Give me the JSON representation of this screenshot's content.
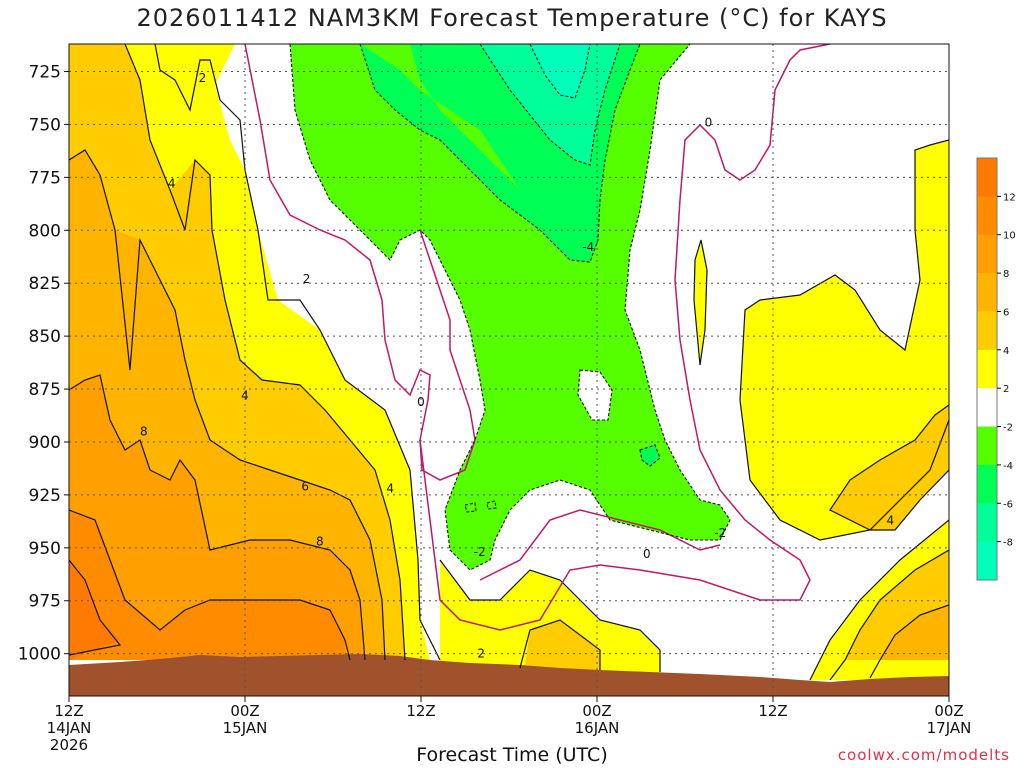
{
  "chart_data": {
    "type": "heatmap",
    "title": "2026011412 NAM3KM Forecast Temperature (°C) for KAYS",
    "xlabel": "Forecast Time (UTC)",
    "credit": "coolwx.com/modelts",
    "y_axis": {
      "ticks": [
        725,
        750,
        775,
        800,
        825,
        850,
        875,
        900,
        925,
        950,
        975,
        1000
      ],
      "range": [
        712,
        1020
      ],
      "inverted": true
    },
    "x_axis": {
      "ticks": [
        {
          "hour": 0,
          "l1": "12Z",
          "l2": "14JAN",
          "l3": "2026"
        },
        {
          "hour": 12,
          "l1": "00Z",
          "l2": "15JAN",
          "l3": ""
        },
        {
          "hour": 24,
          "l1": "12Z",
          "l2": "",
          "l3": ""
        },
        {
          "hour": 36,
          "l1": "00Z",
          "l2": "16JAN",
          "l3": ""
        },
        {
          "hour": 48,
          "l1": "12Z",
          "l2": "",
          "l3": ""
        },
        {
          "hour": 60,
          "l1": "00Z",
          "l2": "17JAN",
          "l3": ""
        }
      ],
      "range": [
        0,
        60
      ]
    },
    "grid": true,
    "colorbar": {
      "placement": "right",
      "ticks": [
        12,
        10,
        8,
        6,
        4,
        2,
        -2,
        -4,
        -6,
        -8
      ],
      "colors": [
        {
          "min": 12,
          "max": 14,
          "color": "#ff7a00"
        },
        {
          "min": 10,
          "max": 12,
          "color": "#ff8c00"
        },
        {
          "min": 8,
          "max": 10,
          "color": "#ff9f00"
        },
        {
          "min": 6,
          "max": 8,
          "color": "#ffb400"
        },
        {
          "min": 4,
          "max": 6,
          "color": "#ffcc00"
        },
        {
          "min": 2,
          "max": 4,
          "color": "#ffff00"
        },
        {
          "min": -2,
          "max": 2,
          "color": "#ffffff"
        },
        {
          "min": -4,
          "max": -2,
          "color": "#55ff00"
        },
        {
          "min": -6,
          "max": -4,
          "color": "#00ff55"
        },
        {
          "min": -8,
          "max": -6,
          "color": "#00ff99"
        },
        {
          "min": -10,
          "max": -8,
          "color": "#00ffbb"
        }
      ]
    },
    "contour_labels": [
      {
        "text": "2",
        "hour": 9.1,
        "p": 728
      },
      {
        "text": "4",
        "hour": 7.0,
        "p": 778
      },
      {
        "text": "2",
        "hour": 16.2,
        "p": 823
      },
      {
        "text": "4",
        "hour": 12.0,
        "p": 878
      },
      {
        "text": "8",
        "hour": 5.1,
        "p": 895
      },
      {
        "text": "6",
        "hour": 16.1,
        "p": 921
      },
      {
        "text": "4",
        "hour": 21.9,
        "p": 922
      },
      {
        "text": "8",
        "hour": 17.1,
        "p": 947
      },
      {
        "text": "0",
        "hour": 24.0,
        "p": 881
      },
      {
        "text": "-2",
        "hour": 28.0,
        "p": 952
      },
      {
        "text": "2",
        "hour": 28.1,
        "p": 1000
      },
      {
        "text": "-4",
        "hour": 35.4,
        "p": 808
      },
      {
        "text": "0",
        "hour": 39.4,
        "p": 953
      },
      {
        "text": "-2",
        "hour": 44.4,
        "p": 943
      },
      {
        "text": "0",
        "hour": 43.6,
        "p": 749
      },
      {
        "text": "4",
        "hour": 56.0,
        "p": 937
      }
    ]
  }
}
